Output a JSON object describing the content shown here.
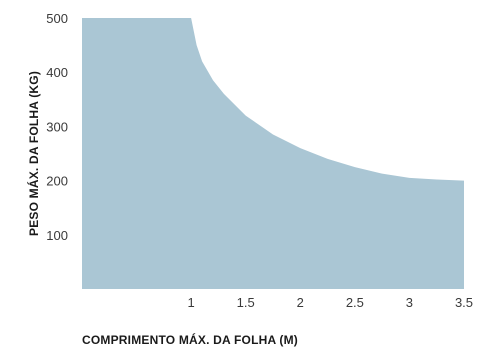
{
  "chart_data": {
    "type": "area",
    "xlabel": "COMPRIMENTO MÁX. DA FOLHA (M)",
    "ylabel": "PESO MÁX. DA FOLHA (KG)",
    "xlim": [
      0,
      3.5
    ],
    "ylim": [
      0,
      500
    ],
    "x_ticks": [
      "1",
      "1.5",
      "2",
      "2.5",
      "3",
      "3.5"
    ],
    "x_tick_values": [
      1,
      1.5,
      2,
      2.5,
      3,
      3.5
    ],
    "y_ticks": [
      "100",
      "200",
      "300",
      "400",
      "500"
    ],
    "y_tick_values": [
      100,
      200,
      300,
      400,
      500
    ],
    "grid": false,
    "fill_color": "#aac6d4",
    "series": [
      {
        "x": [
          0,
          1,
          1.05,
          1.1,
          1.2,
          1.3,
          1.5,
          1.75,
          2,
          2.25,
          2.5,
          2.75,
          3,
          3.25,
          3.5
        ],
        "y": [
          500,
          500,
          450,
          420,
          385,
          360,
          320,
          285,
          260,
          240,
          225,
          213,
          205,
          202,
          200
        ]
      }
    ]
  }
}
